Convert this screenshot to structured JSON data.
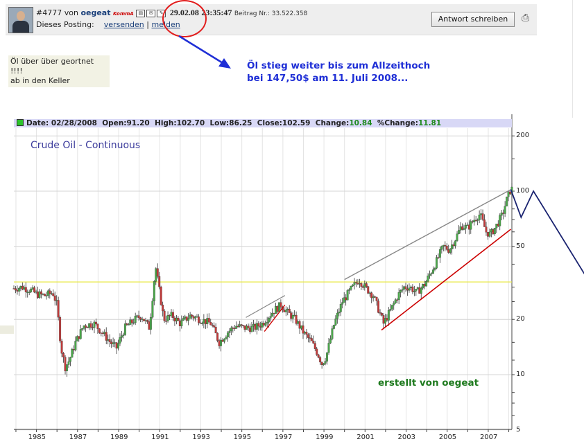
{
  "post": {
    "number": "#4777",
    "von": "von",
    "user": "oegeat",
    "tag": "KommA",
    "date": "29.02.08",
    "time": "23:35:47",
    "beitrag_nr": "Beitrag Nr.: 33.522.358",
    "dieses_posting": "Dieses Posting:",
    "link_send": "versenden",
    "separator": "|",
    "link_report": "melden",
    "reply_button": "Antwort schreiben"
  },
  "note": [
    "Öl über über geortnet !!!!",
    "ab in den Keller"
  ],
  "annotation": [
    "Öl stieg weiter bis zum Allzeithoch",
    "bei 147,50$ am 11. Juli 2008..."
  ],
  "infobar": {
    "date_label": "Date:",
    "date": "02/28/2008",
    "open_label": "Open:",
    "open": "91.20",
    "high_label": "High:",
    "high": "102.70",
    "low_label": "Low:",
    "low": "86.25",
    "close_label": "Close:",
    "close": "102.59",
    "change_label": "Change:",
    "change": "10.84",
    "pchange_label": "%Change:",
    "pchange": "11.81"
  },
  "chart_title": "Crude Oil - Continuous",
  "credit": "erstellt von oegeat",
  "colors": {
    "annotation_blue": "#1f2fd6",
    "circle_red": "#e21d1d",
    "trend_red": "#cc0000",
    "support_yellow": "#e8e840",
    "projection_navy": "#1a2370"
  },
  "chart_data": {
    "type": "candlestick",
    "title": "Crude Oil - Continuous",
    "y_scale": "log",
    "y_ticks": [
      200,
      100,
      50,
      20,
      10,
      5
    ],
    "ylim": [
      5,
      240
    ],
    "x_ticks": [
      "1985",
      "1987",
      "1989",
      "1991",
      "1993",
      "1995",
      "1997",
      "1999",
      "2001",
      "2003",
      "2005",
      "2007"
    ],
    "xlim": [
      1983.9,
      2008.15
    ],
    "close_path": [
      [
        1983.9,
        29.5
      ],
      [
        1984.3,
        30
      ],
      [
        1984.7,
        29
      ],
      [
        1985.0,
        27.5
      ],
      [
        1985.4,
        27
      ],
      [
        1985.8,
        28
      ],
      [
        1986.0,
        24
      ],
      [
        1986.2,
        14
      ],
      [
        1986.4,
        11
      ],
      [
        1986.6,
        12
      ],
      [
        1986.9,
        15
      ],
      [
        1987.3,
        18.5
      ],
      [
        1987.8,
        19
      ],
      [
        1988.2,
        17
      ],
      [
        1988.6,
        15
      ],
      [
        1988.9,
        14
      ],
      [
        1989.3,
        18
      ],
      [
        1989.8,
        20
      ],
      [
        1990.1,
        21
      ],
      [
        1990.5,
        18
      ],
      [
        1990.7,
        30
      ],
      [
        1990.8,
        39
      ],
      [
        1991.0,
        28
      ],
      [
        1991.2,
        20
      ],
      [
        1991.6,
        21
      ],
      [
        1992.0,
        19
      ],
      [
        1992.5,
        21
      ],
      [
        1993.0,
        20
      ],
      [
        1993.5,
        19
      ],
      [
        1993.9,
        15
      ],
      [
        1994.3,
        17
      ],
      [
        1994.7,
        18.5
      ],
      [
        1995.1,
        18
      ],
      [
        1995.6,
        18
      ],
      [
        1996.0,
        19
      ],
      [
        1996.5,
        22
      ],
      [
        1996.9,
        24
      ],
      [
        1997.2,
        22
      ],
      [
        1997.6,
        20
      ],
      [
        1998.0,
        17
      ],
      [
        1998.4,
        15
      ],
      [
        1998.7,
        13
      ],
      [
        1998.9,
        11.5
      ],
      [
        1999.1,
        12.5
      ],
      [
        1999.5,
        19
      ],
      [
        1999.9,
        25
      ],
      [
        2000.3,
        29
      ],
      [
        2000.7,
        33
      ],
      [
        2001.0,
        30
      ],
      [
        2001.4,
        27
      ],
      [
        2001.7,
        22
      ],
      [
        2001.9,
        19
      ],
      [
        2002.2,
        22
      ],
      [
        2002.6,
        27
      ],
      [
        2002.9,
        30
      ],
      [
        2003.2,
        30
      ],
      [
        2003.5,
        28
      ],
      [
        2003.9,
        31
      ],
      [
        2004.2,
        36
      ],
      [
        2004.5,
        42
      ],
      [
        2004.8,
        50
      ],
      [
        2005.1,
        48
      ],
      [
        2005.4,
        55
      ],
      [
        2005.7,
        65
      ],
      [
        2006.0,
        63
      ],
      [
        2006.4,
        72
      ],
      [
        2006.6,
        75
      ],
      [
        2006.9,
        60
      ],
      [
        2007.1,
        58
      ],
      [
        2007.4,
        65
      ],
      [
        2007.7,
        75
      ],
      [
        2007.9,
        90
      ],
      [
        2008.1,
        102.59
      ]
    ]
  },
  "overlays": {
    "support_level": 32,
    "upper_trend": [
      [
        2000.0,
        33
      ],
      [
        2008.1,
        102
      ]
    ],
    "lower_trend": [
      [
        2001.8,
        17.5
      ],
      [
        2008.1,
        62
      ]
    ],
    "short_upper": [
      [
        1995.2,
        20.5
      ],
      [
        1997.1,
        27
      ]
    ],
    "short_lower": [
      [
        1996.1,
        17.2
      ],
      [
        1997.1,
        24
      ]
    ],
    "projection": [
      [
        2008.1,
        102
      ],
      [
        2008.6,
        72
      ],
      [
        2009.2,
        100
      ],
      [
        2012.0,
        31
      ]
    ]
  }
}
